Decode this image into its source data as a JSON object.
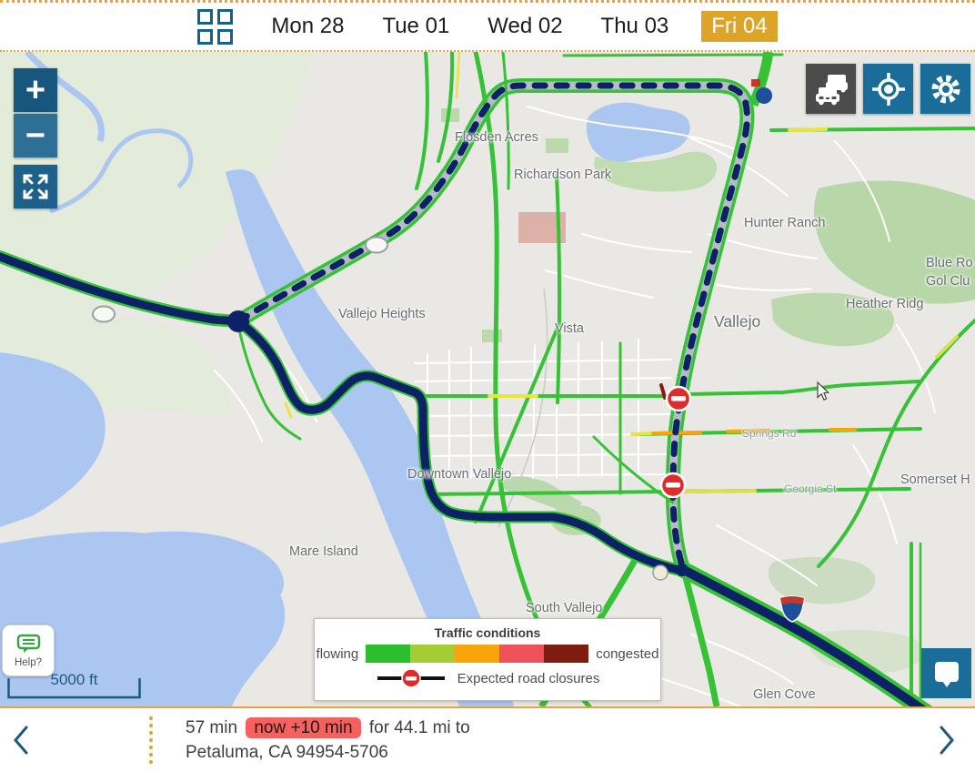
{
  "toolbar": {
    "view_icon": "calendar-grid",
    "days": [
      {
        "label": "Mon 28",
        "selected": false
      },
      {
        "label": "Tue 01",
        "selected": false
      },
      {
        "label": "Wed 02",
        "selected": false
      },
      {
        "label": "Thu 03",
        "selected": false
      },
      {
        "label": "Fri 04",
        "selected": true
      }
    ]
  },
  "map": {
    "controls": {
      "zoom_in": "+",
      "zoom_out": "−",
      "fullscreen": "expand-arrows-icon",
      "traffic": "traffic-cars-icon",
      "locate": "crosshair-icon",
      "settings": "gear-icon",
      "feedback": "chat-bubble-icon"
    },
    "labels": [
      {
        "text": "Flosden Acres"
      },
      {
        "text": "Richardson Park"
      },
      {
        "text": "Hunter Ranch"
      },
      {
        "text": "Blue Ro"
      },
      {
        "text": "Gol  Clu"
      },
      {
        "text": "Heather Ridg"
      },
      {
        "text": "Vallejo Heights"
      },
      {
        "text": "Vista"
      },
      {
        "text": "Vallejo"
      },
      {
        "text": "Downtown Vallejo"
      },
      {
        "text": "Springs Rd"
      },
      {
        "text": "Georgia St"
      },
      {
        "text": "Somerset H"
      },
      {
        "text": "Mare Island"
      },
      {
        "text": "South Vallejo"
      },
      {
        "text": "Glen Cove"
      }
    ],
    "legend": {
      "title": "Traffic conditions",
      "left_label": "flowing",
      "right_label": "congested",
      "colors": [
        "#2dbe2d",
        "#a6cc35",
        "#f7a50a",
        "#f0525c",
        "#7e1d0f"
      ],
      "closure_label": "Expected road closures"
    },
    "scale_label": "5000 ft",
    "help_label": "Help?",
    "road_closure_count": 2
  },
  "status_bar": {
    "duration": "57 min",
    "delay_badge": "now +10 min",
    "distance": "for 44.1 mi to",
    "destination": "Petaluma, CA 94954-5706"
  },
  "colors": {
    "gold": "#dca52a",
    "navy-route": "#0d2167",
    "badge-red": "#f4615e",
    "button-blue": "#1a6d99",
    "traffic-green": "#35c235"
  }
}
